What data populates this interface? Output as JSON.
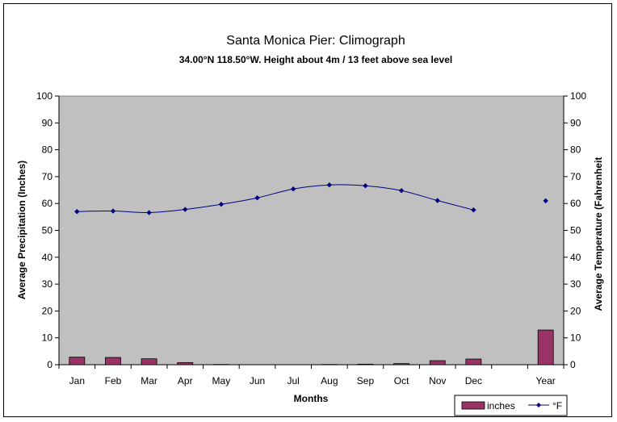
{
  "chart_data": {
    "type": "bar+line",
    "title": "Santa Monica Pier: Climograph",
    "subtitle": "34.00°N 118.50°W. Height about 4m / 13 feet above sea level",
    "xlabel": "Months",
    "ylabel_left": "Average Precipitation (Inches)",
    "ylabel_right": "Average Temperature (Fahrenheit",
    "ylim": [
      0,
      100
    ],
    "yticks": [
      "0",
      "10",
      "20",
      "30",
      "40",
      "50",
      "60",
      "70",
      "80",
      "90",
      "100"
    ],
    "categories": [
      "Jan",
      "Feb",
      "Mar",
      "Apr",
      "May",
      "Jun",
      "Jul",
      "Aug",
      "Sep",
      "Oct",
      "Nov",
      "Dec",
      "",
      "Year"
    ],
    "series": [
      {
        "name": "inches",
        "type": "bar",
        "color": "#993366",
        "values": [
          2.8,
          2.7,
          2.2,
          0.8,
          0.1,
          0.0,
          0.0,
          0.1,
          0.2,
          0.4,
          1.5,
          2.1,
          null,
          12.9
        ]
      },
      {
        "name": "°F",
        "type": "line",
        "color": "#000080",
        "values": [
          57.0,
          57.2,
          56.6,
          57.8,
          59.7,
          62.1,
          65.4,
          66.9,
          66.6,
          64.8,
          61.1,
          57.6,
          null,
          61.0
        ]
      }
    ],
    "grid": false,
    "legend": "bottom-right",
    "plot_background": "#c0c0c0"
  }
}
